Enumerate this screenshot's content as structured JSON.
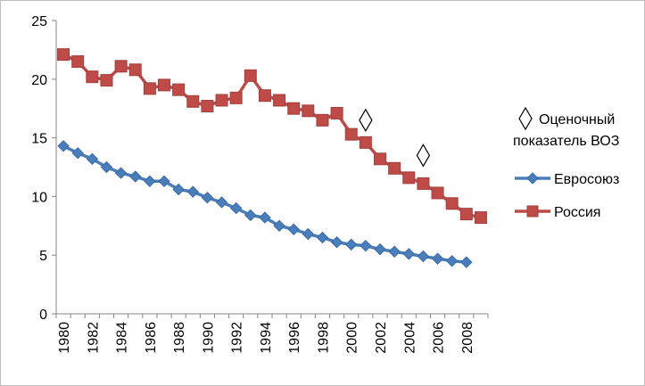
{
  "chart_data": {
    "type": "line",
    "title": "",
    "xlabel": "",
    "ylabel": "",
    "ylim": [
      0,
      25
    ],
    "yticks": [
      0,
      5,
      10,
      15,
      20,
      25
    ],
    "xlim": [
      1980,
      2009
    ],
    "xticks": [
      1980,
      1982,
      1984,
      1986,
      1988,
      1990,
      1992,
      1994,
      1996,
      1998,
      2000,
      2002,
      2004,
      2006,
      2008
    ],
    "grid": false,
    "legend_position": "right",
    "series": [
      {
        "name": "Евросоюз",
        "marker": "diamond",
        "color": "#4a7ebb",
        "x": [
          1980,
          1981,
          1982,
          1983,
          1984,
          1985,
          1986,
          1987,
          1988,
          1989,
          1990,
          1991,
          1992,
          1993,
          1994,
          1995,
          1996,
          1997,
          1998,
          1999,
          2000,
          2001,
          2002,
          2003,
          2004,
          2005,
          2006,
          2007,
          2008
        ],
        "values": [
          14.3,
          13.7,
          13.2,
          12.5,
          12.0,
          11.7,
          11.3,
          11.3,
          10.6,
          10.4,
          9.9,
          9.5,
          9.0,
          8.4,
          8.2,
          7.5,
          7.2,
          6.8,
          6.5,
          6.1,
          5.9,
          5.8,
          5.5,
          5.3,
          5.1,
          4.9,
          4.7,
          4.5,
          4.4
        ]
      },
      {
        "name": "Россия",
        "marker": "square",
        "color": "#be4b48",
        "x": [
          1980,
          1981,
          1982,
          1983,
          1984,
          1985,
          1986,
          1987,
          1988,
          1989,
          1990,
          1991,
          1992,
          1993,
          1994,
          1995,
          1996,
          1997,
          1998,
          1999,
          2000,
          2001,
          2002,
          2003,
          2004,
          2005,
          2006,
          2007,
          2008,
          2009
        ],
        "values": [
          22.1,
          21.5,
          20.2,
          19.9,
          21.1,
          20.8,
          19.2,
          19.5,
          19.1,
          18.1,
          17.7,
          18.2,
          18.4,
          20.3,
          18.6,
          18.2,
          17.5,
          17.3,
          16.5,
          17.1,
          15.3,
          14.6,
          13.2,
          12.4,
          11.6,
          11.1,
          10.3,
          9.4,
          8.5,
          8.2
        ]
      },
      {
        "name": "Оценочный показатель ВОЗ",
        "marker": "hollow-diamond",
        "color": "#000000",
        "x": [
          2001,
          2005
        ],
        "values": [
          16.5,
          13.5
        ]
      }
    ],
    "legend": {
      "who_line1": "Оценочный",
      "who_line2": "показатель ВОЗ",
      "eu": "Евросоюз",
      "ru": "Россия"
    }
  }
}
